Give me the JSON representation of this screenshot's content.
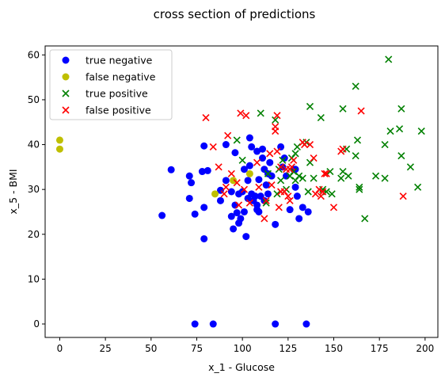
{
  "chart_data": {
    "type": "scatter",
    "title": "cross section of predictions",
    "xlabel": "x_1 - Glucose",
    "ylabel": "x_5 - BMI",
    "xlim": [
      -8,
      207
    ],
    "ylim": [
      -3,
      62
    ],
    "xticks": [
      "0",
      "25",
      "50",
      "75",
      "100",
      "125",
      "150",
      "175",
      "200"
    ],
    "yticks": [
      "0",
      "10",
      "20",
      "30",
      "40",
      "50",
      "60"
    ],
    "grid": false,
    "legend_position": "top-left",
    "series": [
      {
        "name": "true negative",
        "marker": "circle",
        "color": "#0000ff",
        "points": [
          [
            56,
            24.2
          ],
          [
            61,
            34.4
          ],
          [
            71,
            28
          ],
          [
            71,
            33
          ],
          [
            72,
            31.5
          ],
          [
            74,
            24.5
          ],
          [
            74,
            0
          ],
          [
            78,
            34
          ],
          [
            79,
            26
          ],
          [
            79,
            39.7
          ],
          [
            79,
            19
          ],
          [
            81,
            34.2
          ],
          [
            84,
            0
          ],
          [
            88,
            27.5
          ],
          [
            88,
            29.8
          ],
          [
            91,
            32
          ],
          [
            91,
            40
          ],
          [
            94,
            29.5
          ],
          [
            94,
            24
          ],
          [
            95,
            21.2
          ],
          [
            96,
            26.5
          ],
          [
            96,
            38.2
          ],
          [
            97,
            24.8
          ],
          [
            98,
            22.5
          ],
          [
            98,
            29
          ],
          [
            99,
            23.5
          ],
          [
            100,
            29.5
          ],
          [
            101,
            25
          ],
          [
            101,
            34.5
          ],
          [
            102,
            19.5
          ],
          [
            103,
            32
          ],
          [
            103,
            28
          ],
          [
            104,
            35.3
          ],
          [
            104,
            41.5
          ],
          [
            105,
            29
          ],
          [
            105,
            39.5
          ],
          [
            106,
            27.5
          ],
          [
            107,
            28.5
          ],
          [
            108,
            25.5
          ],
          [
            108,
            26.5
          ],
          [
            108,
            38.5
          ],
          [
            109,
            25
          ],
          [
            109,
            32.2
          ],
          [
            110,
            28.5
          ],
          [
            111,
            37
          ],
          [
            111,
            39
          ],
          [
            112,
            34.5
          ],
          [
            112,
            27.5
          ],
          [
            113,
            31
          ],
          [
            114,
            33.5
          ],
          [
            114,
            29
          ],
          [
            115,
            36
          ],
          [
            116,
            33
          ],
          [
            118,
            0
          ],
          [
            118,
            22.2
          ],
          [
            121,
            39.5
          ],
          [
            122,
            35
          ],
          [
            123,
            37
          ],
          [
            124,
            33
          ],
          [
            126,
            25.5
          ],
          [
            128,
            34.5
          ],
          [
            129,
            34.5
          ],
          [
            129,
            30.5
          ],
          [
            130,
            28.5
          ],
          [
            131,
            23.5
          ],
          [
            133,
            26
          ],
          [
            135,
            0
          ],
          [
            136,
            25
          ]
        ]
      },
      {
        "name": "false negative",
        "marker": "circle",
        "color": "#bfbf00",
        "points": [
          [
            0,
            41
          ],
          [
            0,
            39
          ],
          [
            85,
            29
          ],
          [
            95,
            32
          ],
          [
            104,
            33.5
          ]
        ]
      },
      {
        "name": "true positive",
        "marker": "x",
        "color": "#008000",
        "points": [
          [
            97,
            41
          ],
          [
            100,
            36.5
          ],
          [
            110,
            47
          ],
          [
            113,
            27
          ],
          [
            114,
            33.5
          ],
          [
            118,
            45.5
          ],
          [
            119,
            29
          ],
          [
            120,
            34.5
          ],
          [
            121,
            32
          ],
          [
            122,
            36.5
          ],
          [
            124,
            30
          ],
          [
            126,
            33
          ],
          [
            127,
            37
          ],
          [
            128,
            34
          ],
          [
            129,
            38
          ],
          [
            129,
            32
          ],
          [
            130,
            39.5
          ],
          [
            131,
            33
          ],
          [
            133,
            32.5
          ],
          [
            135,
            40.5
          ],
          [
            136,
            29.5
          ],
          [
            137,
            48.5
          ],
          [
            137,
            36
          ],
          [
            139,
            32.5
          ],
          [
            143,
            46
          ],
          [
            144,
            30
          ],
          [
            146,
            29.5
          ],
          [
            148,
            34
          ],
          [
            149,
            29
          ],
          [
            154,
            32.5
          ],
          [
            155,
            34
          ],
          [
            155,
            48
          ],
          [
            157,
            39
          ],
          [
            158,
            33
          ],
          [
            162,
            37.5
          ],
          [
            162,
            53
          ],
          [
            163,
            41
          ],
          [
            164,
            30.5
          ],
          [
            164,
            30
          ],
          [
            167,
            23.5
          ],
          [
            173,
            33
          ],
          [
            178,
            40
          ],
          [
            178,
            32.5
          ],
          [
            180,
            59
          ],
          [
            181,
            43
          ],
          [
            186,
            43.5
          ],
          [
            187,
            37.5
          ],
          [
            187,
            48
          ],
          [
            192,
            35
          ],
          [
            196,
            30.5
          ],
          [
            198,
            43
          ]
        ]
      },
      {
        "name": "false positive",
        "marker": "x",
        "color": "#ff0000",
        "points": [
          [
            80,
            46
          ],
          [
            84,
            39.5
          ],
          [
            87,
            35
          ],
          [
            90,
            29
          ],
          [
            91,
            30.5
          ],
          [
            92,
            42
          ],
          [
            94,
            33.5
          ],
          [
            97,
            31.5
          ],
          [
            98,
            26.5
          ],
          [
            99,
            47
          ],
          [
            101,
            30
          ],
          [
            102,
            46.5
          ],
          [
            104,
            27
          ],
          [
            108,
            36
          ],
          [
            109,
            30.5
          ],
          [
            112,
            23.5
          ],
          [
            113,
            27.5
          ],
          [
            115,
            38
          ],
          [
            116,
            31
          ],
          [
            118,
            44
          ],
          [
            118,
            43
          ],
          [
            119,
            38.5
          ],
          [
            119,
            46.5
          ],
          [
            120,
            26
          ],
          [
            121,
            29.5
          ],
          [
            121,
            35
          ],
          [
            123,
            29.5
          ],
          [
            124,
            34.5
          ],
          [
            125,
            28.5
          ],
          [
            126,
            27.5
          ],
          [
            126,
            34.5
          ],
          [
            127,
            35
          ],
          [
            128,
            36.5
          ],
          [
            133,
            40.5
          ],
          [
            134,
            40
          ],
          [
            137,
            40
          ],
          [
            139,
            37
          ],
          [
            140,
            29
          ],
          [
            142,
            30
          ],
          [
            143,
            28.5
          ],
          [
            144,
            29.5
          ],
          [
            145,
            33.5
          ],
          [
            146,
            33.5
          ],
          [
            150,
            26
          ],
          [
            154,
            38.5
          ],
          [
            155,
            39
          ],
          [
            165,
            47.5
          ],
          [
            188,
            28.5
          ]
        ]
      }
    ]
  }
}
